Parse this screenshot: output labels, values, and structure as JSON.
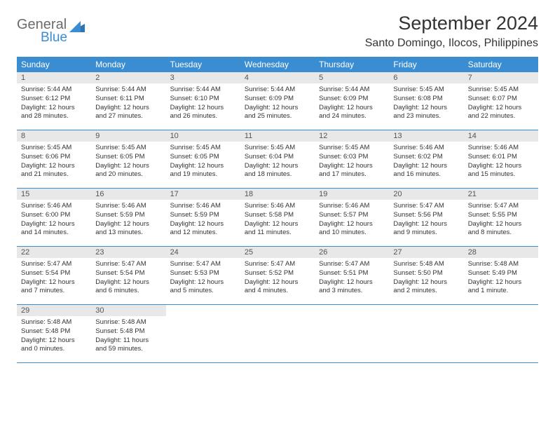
{
  "logo": {
    "word1": "General",
    "word2": "Blue"
  },
  "title": "September 2024",
  "location": "Santo Domingo, Ilocos, Philippines",
  "colors": {
    "header_bg": "#3a8dd0",
    "header_text": "#ffffff",
    "daynum_bg": "#e8e8e8",
    "border": "#3a8dd0",
    "text": "#333333",
    "logo_gray": "#6b6b6b",
    "logo_blue": "#3a8dd0"
  },
  "day_names": [
    "Sunday",
    "Monday",
    "Tuesday",
    "Wednesday",
    "Thursday",
    "Friday",
    "Saturday"
  ],
  "weeks": [
    [
      {
        "n": "1",
        "sr": "Sunrise: 5:44 AM",
        "ss": "Sunset: 6:12 PM",
        "d1": "Daylight: 12 hours",
        "d2": "and 28 minutes."
      },
      {
        "n": "2",
        "sr": "Sunrise: 5:44 AM",
        "ss": "Sunset: 6:11 PM",
        "d1": "Daylight: 12 hours",
        "d2": "and 27 minutes."
      },
      {
        "n": "3",
        "sr": "Sunrise: 5:44 AM",
        "ss": "Sunset: 6:10 PM",
        "d1": "Daylight: 12 hours",
        "d2": "and 26 minutes."
      },
      {
        "n": "4",
        "sr": "Sunrise: 5:44 AM",
        "ss": "Sunset: 6:09 PM",
        "d1": "Daylight: 12 hours",
        "d2": "and 25 minutes."
      },
      {
        "n": "5",
        "sr": "Sunrise: 5:44 AM",
        "ss": "Sunset: 6:09 PM",
        "d1": "Daylight: 12 hours",
        "d2": "and 24 minutes."
      },
      {
        "n": "6",
        "sr": "Sunrise: 5:45 AM",
        "ss": "Sunset: 6:08 PM",
        "d1": "Daylight: 12 hours",
        "d2": "and 23 minutes."
      },
      {
        "n": "7",
        "sr": "Sunrise: 5:45 AM",
        "ss": "Sunset: 6:07 PM",
        "d1": "Daylight: 12 hours",
        "d2": "and 22 minutes."
      }
    ],
    [
      {
        "n": "8",
        "sr": "Sunrise: 5:45 AM",
        "ss": "Sunset: 6:06 PM",
        "d1": "Daylight: 12 hours",
        "d2": "and 21 minutes."
      },
      {
        "n": "9",
        "sr": "Sunrise: 5:45 AM",
        "ss": "Sunset: 6:05 PM",
        "d1": "Daylight: 12 hours",
        "d2": "and 20 minutes."
      },
      {
        "n": "10",
        "sr": "Sunrise: 5:45 AM",
        "ss": "Sunset: 6:05 PM",
        "d1": "Daylight: 12 hours",
        "d2": "and 19 minutes."
      },
      {
        "n": "11",
        "sr": "Sunrise: 5:45 AM",
        "ss": "Sunset: 6:04 PM",
        "d1": "Daylight: 12 hours",
        "d2": "and 18 minutes."
      },
      {
        "n": "12",
        "sr": "Sunrise: 5:45 AM",
        "ss": "Sunset: 6:03 PM",
        "d1": "Daylight: 12 hours",
        "d2": "and 17 minutes."
      },
      {
        "n": "13",
        "sr": "Sunrise: 5:46 AM",
        "ss": "Sunset: 6:02 PM",
        "d1": "Daylight: 12 hours",
        "d2": "and 16 minutes."
      },
      {
        "n": "14",
        "sr": "Sunrise: 5:46 AM",
        "ss": "Sunset: 6:01 PM",
        "d1": "Daylight: 12 hours",
        "d2": "and 15 minutes."
      }
    ],
    [
      {
        "n": "15",
        "sr": "Sunrise: 5:46 AM",
        "ss": "Sunset: 6:00 PM",
        "d1": "Daylight: 12 hours",
        "d2": "and 14 minutes."
      },
      {
        "n": "16",
        "sr": "Sunrise: 5:46 AM",
        "ss": "Sunset: 5:59 PM",
        "d1": "Daylight: 12 hours",
        "d2": "and 13 minutes."
      },
      {
        "n": "17",
        "sr": "Sunrise: 5:46 AM",
        "ss": "Sunset: 5:59 PM",
        "d1": "Daylight: 12 hours",
        "d2": "and 12 minutes."
      },
      {
        "n": "18",
        "sr": "Sunrise: 5:46 AM",
        "ss": "Sunset: 5:58 PM",
        "d1": "Daylight: 12 hours",
        "d2": "and 11 minutes."
      },
      {
        "n": "19",
        "sr": "Sunrise: 5:46 AM",
        "ss": "Sunset: 5:57 PM",
        "d1": "Daylight: 12 hours",
        "d2": "and 10 minutes."
      },
      {
        "n": "20",
        "sr": "Sunrise: 5:47 AM",
        "ss": "Sunset: 5:56 PM",
        "d1": "Daylight: 12 hours",
        "d2": "and 9 minutes."
      },
      {
        "n": "21",
        "sr": "Sunrise: 5:47 AM",
        "ss": "Sunset: 5:55 PM",
        "d1": "Daylight: 12 hours",
        "d2": "and 8 minutes."
      }
    ],
    [
      {
        "n": "22",
        "sr": "Sunrise: 5:47 AM",
        "ss": "Sunset: 5:54 PM",
        "d1": "Daylight: 12 hours",
        "d2": "and 7 minutes."
      },
      {
        "n": "23",
        "sr": "Sunrise: 5:47 AM",
        "ss": "Sunset: 5:54 PM",
        "d1": "Daylight: 12 hours",
        "d2": "and 6 minutes."
      },
      {
        "n": "24",
        "sr": "Sunrise: 5:47 AM",
        "ss": "Sunset: 5:53 PM",
        "d1": "Daylight: 12 hours",
        "d2": "and 5 minutes."
      },
      {
        "n": "25",
        "sr": "Sunrise: 5:47 AM",
        "ss": "Sunset: 5:52 PM",
        "d1": "Daylight: 12 hours",
        "d2": "and 4 minutes."
      },
      {
        "n": "26",
        "sr": "Sunrise: 5:47 AM",
        "ss": "Sunset: 5:51 PM",
        "d1": "Daylight: 12 hours",
        "d2": "and 3 minutes."
      },
      {
        "n": "27",
        "sr": "Sunrise: 5:48 AM",
        "ss": "Sunset: 5:50 PM",
        "d1": "Daylight: 12 hours",
        "d2": "and 2 minutes."
      },
      {
        "n": "28",
        "sr": "Sunrise: 5:48 AM",
        "ss": "Sunset: 5:49 PM",
        "d1": "Daylight: 12 hours",
        "d2": "and 1 minute."
      }
    ],
    [
      {
        "n": "29",
        "sr": "Sunrise: 5:48 AM",
        "ss": "Sunset: 5:48 PM",
        "d1": "Daylight: 12 hours",
        "d2": "and 0 minutes."
      },
      {
        "n": "30",
        "sr": "Sunrise: 5:48 AM",
        "ss": "Sunset: 5:48 PM",
        "d1": "Daylight: 11 hours",
        "d2": "and 59 minutes."
      },
      null,
      null,
      null,
      null,
      null
    ]
  ]
}
